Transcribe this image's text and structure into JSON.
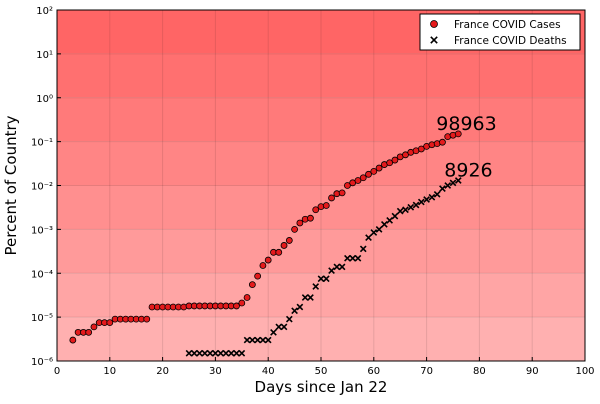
{
  "chart_data": {
    "type": "scatter",
    "title": "",
    "xlabel": "Days since Jan 22",
    "ylabel": "Percent of Country",
    "xlim": [
      0,
      100
    ],
    "ylim": [
      1e-06,
      100
    ],
    "y_scale": "log",
    "x_ticks": [
      0,
      10,
      20,
      30,
      40,
      50,
      60,
      70,
      80,
      90,
      100
    ],
    "y_ticks": [
      {
        "value": 1e-06,
        "label": "10⁻⁶"
      },
      {
        "value": 1e-05,
        "label": "10⁻⁵"
      },
      {
        "value": 0.0001,
        "label": "10⁻⁴"
      },
      {
        "value": 0.001,
        "label": "10⁻³"
      },
      {
        "value": 0.01,
        "label": "10⁻²"
      },
      {
        "value": 0.1,
        "label": "10⁻¹"
      },
      {
        "value": 1,
        "label": "10⁰"
      },
      {
        "value": 10,
        "label": "10¹"
      },
      {
        "value": 100,
        "label": "10²"
      }
    ],
    "grid": true,
    "legend_position": "top-right",
    "background_bands": [
      {
        "from": 10,
        "to": 100,
        "color": "#ff6565"
      },
      {
        "from": 1,
        "to": 10,
        "color": "#ff7070"
      },
      {
        "from": 0.1,
        "to": 1,
        "color": "#ff7a7a"
      },
      {
        "from": 0.01,
        "to": 0.1,
        "color": "#ff8585"
      },
      {
        "from": 0.001,
        "to": 0.01,
        "color": "#ff8f8f"
      },
      {
        "from": 0.0001,
        "to": 0.001,
        "color": "#ff9a9a"
      },
      {
        "from": 1e-05,
        "to": 0.0001,
        "color": "#ffa5a5"
      },
      {
        "from": 1e-06,
        "to": 1e-05,
        "color": "#ffb0b0"
      }
    ],
    "series": [
      {
        "name": "France COVID Cases",
        "marker": "circle",
        "color": "#e41a1c",
        "x": [
          3,
          4,
          5,
          6,
          7,
          8,
          9,
          10,
          11,
          12,
          13,
          14,
          15,
          16,
          17,
          18,
          19,
          20,
          21,
          22,
          23,
          24,
          25,
          26,
          27,
          28,
          29,
          30,
          31,
          32,
          33,
          34,
          35,
          36,
          37,
          38,
          39,
          40,
          41,
          42,
          43,
          44,
          45,
          46,
          47,
          48,
          49,
          50,
          51,
          52,
          53,
          54,
          55,
          56,
          57,
          58,
          59,
          60,
          61,
          62,
          63,
          64,
          65,
          66,
          67,
          68,
          69,
          70,
          71,
          72,
          73,
          74,
          75,
          76
        ],
        "y": [
          3e-06,
          4.5e-06,
          4.5e-06,
          4.5e-06,
          6e-06,
          7.5e-06,
          7.5e-06,
          7.5e-06,
          9e-06,
          9e-06,
          9e-06,
          9e-06,
          9e-06,
          9e-06,
          9e-06,
          1.7e-05,
          1.7e-05,
          1.7e-05,
          1.7e-05,
          1.7e-05,
          1.7e-05,
          1.7e-05,
          1.8e-05,
          1.8e-05,
          1.8e-05,
          1.8e-05,
          1.8e-05,
          1.8e-05,
          1.8e-05,
          1.8e-05,
          1.8e-05,
          1.8e-05,
          2.1e-05,
          2.8e-05,
          5.5e-05,
          8.6e-05,
          0.00015,
          0.0002,
          0.0003,
          0.0003,
          0.00043,
          0.00056,
          0.001,
          0.0014,
          0.0017,
          0.0018,
          0.0028,
          0.0033,
          0.0035,
          0.0052,
          0.0065,
          0.0068,
          0.01,
          0.0115,
          0.013,
          0.015,
          0.018,
          0.021,
          0.025,
          0.03,
          0.033,
          0.038,
          0.045,
          0.05,
          0.057,
          0.062,
          0.068,
          0.078,
          0.085,
          0.09,
          0.097,
          0.13,
          0.14,
          0.15
        ]
      },
      {
        "name": "France COVID Deaths",
        "marker": "x",
        "color": "#000000",
        "x": [
          25,
          26,
          27,
          28,
          29,
          30,
          31,
          32,
          33,
          34,
          35,
          36,
          37,
          38,
          39,
          40,
          41,
          42,
          43,
          44,
          45,
          46,
          47,
          48,
          49,
          50,
          51,
          52,
          53,
          54,
          55,
          56,
          57,
          58,
          59,
          60,
          61,
          62,
          63,
          64,
          65,
          66,
          67,
          68,
          69,
          70,
          71,
          72,
          73,
          74,
          75,
          76
        ],
        "y": [
          1.5e-06,
          1.5e-06,
          1.5e-06,
          1.5e-06,
          1.5e-06,
          1.5e-06,
          1.5e-06,
          1.5e-06,
          1.5e-06,
          1.5e-06,
          1.5e-06,
          3e-06,
          3e-06,
          3e-06,
          3e-06,
          3e-06,
          4.5e-06,
          6e-06,
          6e-06,
          9e-06,
          1.4e-05,
          1.7e-05,
          2.8e-05,
          2.8e-05,
          5e-05,
          7.5e-05,
          7.5e-05,
          0.000115,
          0.00014,
          0.00014,
          0.00022,
          0.00022,
          0.00022,
          0.00036,
          0.00065,
          0.00085,
          0.001,
          0.0013,
          0.0016,
          0.002,
          0.0026,
          0.0028,
          0.0032,
          0.0036,
          0.0042,
          0.0048,
          0.0054,
          0.0063,
          0.0085,
          0.01,
          0.0115,
          0.013
        ]
      }
    ],
    "annotations": [
      {
        "text": "98963",
        "x": 76,
        "y": 0.25
      },
      {
        "text": "8926",
        "x": 76,
        "y": 0.022
      }
    ]
  }
}
